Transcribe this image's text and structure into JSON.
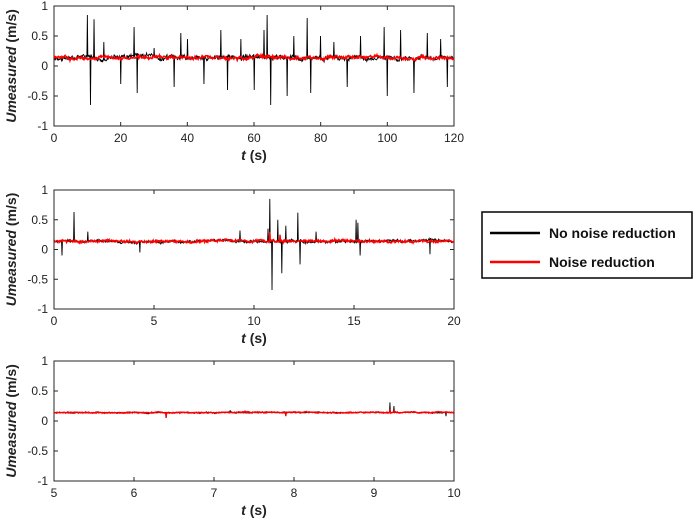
{
  "colors": {
    "no_noise": "#000000",
    "noise": "#ff0000",
    "axis": "#262626",
    "grid": "#d9d9d9"
  },
  "legend": {
    "items": [
      {
        "label": "No noise reduction",
        "color": "#000000"
      },
      {
        "label": "Noise reduction",
        "color": "#ff0000"
      }
    ],
    "placement": "right"
  },
  "chart_data": [
    {
      "type": "line",
      "ylabel_italic": "Umeasured",
      "ylabel_unit": "(m/s)",
      "xlabel_italic": "t",
      "xlabel_unit": "(s)",
      "xlim": [
        0,
        120
      ],
      "ylim": [
        -1,
        1
      ],
      "xticks": [
        0,
        20,
        40,
        60,
        80,
        100,
        120
      ],
      "yticks": [
        -1,
        -0.5,
        0,
        0.5,
        1
      ],
      "xtick_labels": [
        "0",
        "20",
        "40",
        "60",
        "80",
        "100",
        "120"
      ],
      "ytick_labels": [
        "-1",
        "-0.5",
        "0",
        "0.5",
        "1"
      ],
      "baseline": 0.14,
      "series": [
        {
          "name": "No noise reduction",
          "color": "#000000",
          "noise": 0.05,
          "spikes": [
            [
              10,
              0.85
            ],
            [
              11,
              -0.65
            ],
            [
              12,
              0.78
            ],
            [
              15,
              0.4
            ],
            [
              20,
              -0.3
            ],
            [
              24,
              0.65
            ],
            [
              25,
              -0.45
            ],
            [
              30,
              0.3
            ],
            [
              36,
              -0.35
            ],
            [
              38,
              0.55
            ],
            [
              40,
              0.45
            ],
            [
              45,
              -0.3
            ],
            [
              50,
              0.6
            ],
            [
              52,
              -0.4
            ],
            [
              56,
              0.45
            ],
            [
              60,
              -0.4
            ],
            [
              63,
              0.6
            ],
            [
              64,
              0.85
            ],
            [
              65,
              -0.65
            ],
            [
              70,
              -0.5
            ],
            [
              72,
              0.5
            ],
            [
              76,
              0.8
            ],
            [
              77,
              -0.45
            ],
            [
              80,
              0.5
            ],
            [
              84,
              0.4
            ],
            [
              88,
              -0.35
            ],
            [
              92,
              0.5
            ],
            [
              99,
              0.65
            ],
            [
              100,
              -0.5
            ],
            [
              104,
              0.6
            ],
            [
              108,
              -0.45
            ],
            [
              112,
              0.55
            ],
            [
              116,
              0.45
            ],
            [
              118,
              -0.35
            ]
          ]
        },
        {
          "name": "Noise reduction",
          "color": "#ff0000",
          "noise": 0.035,
          "spikes": []
        }
      ]
    },
    {
      "type": "line",
      "ylabel_italic": "Umeasured",
      "ylabel_unit": "(m/s)",
      "xlabel_italic": "t",
      "xlabel_unit": "(s)",
      "xlim": [
        0,
        20
      ],
      "ylim": [
        -1,
        1
      ],
      "xticks": [
        0,
        5,
        10,
        15,
        20
      ],
      "yticks": [
        -1,
        -0.5,
        0,
        0.5,
        1
      ],
      "xtick_labels": [
        "0",
        "5",
        "10",
        "15",
        "20"
      ],
      "ytick_labels": [
        "-1",
        "-0.5",
        "0",
        "0.5",
        "1"
      ],
      "baseline": 0.14,
      "series": [
        {
          "name": "No noise reduction",
          "color": "#000000",
          "noise": 0.03,
          "spikes": [
            [
              0.4,
              -0.1
            ],
            [
              1.0,
              0.63
            ],
            [
              1.7,
              0.3
            ],
            [
              4.3,
              -0.05
            ],
            [
              9.3,
              0.32
            ],
            [
              10.7,
              0.35
            ],
            [
              10.8,
              0.85
            ],
            [
              10.9,
              -0.68
            ],
            [
              11.2,
              0.5
            ],
            [
              11.4,
              -0.4
            ],
            [
              11.6,
              0.4
            ],
            [
              12.2,
              0.62
            ],
            [
              12.3,
              -0.25
            ],
            [
              13.1,
              0.3
            ],
            [
              15.1,
              0.5
            ],
            [
              15.2,
              0.45
            ],
            [
              15.3,
              -0.1
            ],
            [
              18.8,
              -0.08
            ]
          ]
        },
        {
          "name": "Noise reduction",
          "color": "#ff0000",
          "noise": 0.025,
          "spikes": [
            [
              10.8,
              0.3
            ],
            [
              11.3,
              0.25
            ]
          ]
        }
      ]
    },
    {
      "type": "line",
      "ylabel_italic": "Umeasured",
      "ylabel_unit": "(m/s)",
      "xlabel_italic": "t",
      "xlabel_unit": "(s)",
      "xlim": [
        5,
        10
      ],
      "ylim": [
        -1,
        1
      ],
      "xticks": [
        5,
        6,
        7,
        8,
        9,
        10
      ],
      "yticks": [
        -1,
        -0.5,
        0,
        0.5,
        1
      ],
      "xtick_labels": [
        "5",
        "6",
        "7",
        "8",
        "9",
        "10"
      ],
      "ytick_labels": [
        "-1",
        "-0.5",
        "0",
        "0.5",
        "1"
      ],
      "baseline": 0.14,
      "series": [
        {
          "name": "No noise reduction",
          "color": "#000000",
          "noise": 0.012,
          "spikes": [
            [
              6.4,
              0.05
            ],
            [
              7.2,
              0.18
            ],
            [
              7.9,
              0.08
            ],
            [
              9.2,
              0.31
            ],
            [
              9.25,
              0.25
            ],
            [
              9.9,
              0.08
            ]
          ]
        },
        {
          "name": "Noise reduction",
          "color": "#ff0000",
          "noise": 0.012,
          "spikes": [
            [
              6.4,
              0.06
            ],
            [
              7.9,
              0.09
            ],
            [
              9.2,
              0.2
            ]
          ]
        }
      ]
    }
  ]
}
